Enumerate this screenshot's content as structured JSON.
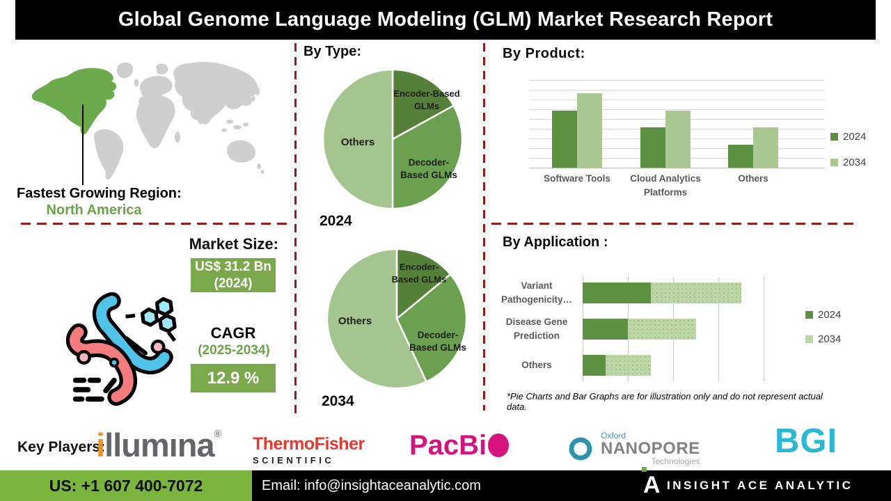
{
  "title": "Global Genome Language Modeling (GLM) Market Research Report",
  "region": {
    "label": "Fastest Growing Region:",
    "value": "North America"
  },
  "market": {
    "size_label": "Market Size:",
    "size_value": "US$ 31.2 Bn",
    "size_year": "(2024)",
    "cagr_label": "CAGR",
    "cagr_period": "(2025-2034)",
    "cagr_value": "12.9 %"
  },
  "sections": {
    "by_type": "By Type:",
    "by_product": "By  Product:",
    "by_application": "By Application :"
  },
  "chart_data": [
    {
      "type": "pie",
      "title": "2024",
      "labels": [
        "Encoder-Based GLMs",
        "Decoder-Based GLMs",
        "Others"
      ],
      "display_labels": [
        "Encoder-Based\nGLMs",
        "Decoder-\nBased GLMs",
        "Others"
      ],
      "values": [
        17,
        33,
        50
      ],
      "colors": [
        "#55803a",
        "#6aa050",
        "#a5c58e"
      ],
      "note": "slice percentages estimated from illustration"
    },
    {
      "type": "pie",
      "title": "2034",
      "labels": [
        "Encoder-Based GLMs",
        "Decoder-Based GLMs",
        "Others"
      ],
      "display_labels": [
        "Encoder-\nBased GLMs",
        "Decoder-\nBased GLMs",
        "Others"
      ],
      "values": [
        14,
        29,
        57
      ],
      "colors": [
        "#55803a",
        "#6aa050",
        "#a5c58e"
      ],
      "note": "slice percentages estimated from illustration"
    },
    {
      "type": "bar",
      "title": "By Product:",
      "categories": [
        "Software Tools",
        "Cloud Analytics\nPlatforms",
        "Others"
      ],
      "series": [
        {
          "name": "2024",
          "color": "#5b9140",
          "values": [
            6.5,
            4.6,
            2.6
          ]
        },
        {
          "name": "2034",
          "color": "#abc893",
          "values": [
            8.5,
            6.5,
            4.6
          ]
        }
      ],
      "ylim": [
        0,
        10
      ],
      "grid": "horizontal",
      "legend_position": "right",
      "note": "relative heights only; illustrative"
    },
    {
      "type": "stacked-bar-horizontal",
      "title": "By Application :",
      "categories": [
        "Variant\nPathogenicity…",
        "Disease Gene\nPrediction",
        "Others"
      ],
      "series": [
        {
          "name": "2024",
          "color": "#5b9140",
          "values": [
            1.5,
            1.0,
            0.5
          ]
        },
        {
          "name": "2034",
          "color": "#bcd6a5",
          "values": [
            2.0,
            1.5,
            1.0
          ]
        }
      ],
      "xlim": [
        0,
        4.2
      ],
      "grid": "vertical",
      "legend_position": "right",
      "note": "relative lengths only; illustrative"
    }
  ],
  "footnote": "*Pie Charts and Bar Graphs are for illustration only and do not represent actual data.",
  "key_players": {
    "label": "Key Players:",
    "illumina": {
      "i": "i",
      "rest": "llumına",
      "reg": "®"
    },
    "thermo": {
      "line1": "ThermoFisher",
      "line2": "SCIENTIFIC"
    },
    "pacbio": {
      "text": "PacBi"
    },
    "nanopore": {
      "line1": "Oxford",
      "line2": "NANOPORE",
      "line3": "Technologies"
    },
    "bgi": {
      "text": "BGI"
    }
  },
  "footer": {
    "phone": "US: +1 607 400-7072",
    "email": "Email: info@insightaceanalytic.com",
    "brand": "INSIGHT ACE ANALYTIC"
  },
  "colors": {
    "pie_dark_green": "#55803a",
    "pie_mid_green": "#6aa050",
    "pie_light_green": "#a5c58e",
    "bar_2024": "#5b9140",
    "bar_2034": "#abc893",
    "box_green": "#7aa84a",
    "accent_text_green": "#6ca348",
    "map_region_green": "#6cab4b",
    "map_grey": "#cfcfcf",
    "dash_red": "#971c1c",
    "footer_green": "#7cb53e",
    "illumina_grey": "#636569",
    "illumina_orange": "#f0931f",
    "thermo_red": "#e6392f",
    "pacbio_magenta": "#d6127e",
    "nanopore_teal": "#3d99ad",
    "bgi_cyan": "#29b9d5"
  }
}
